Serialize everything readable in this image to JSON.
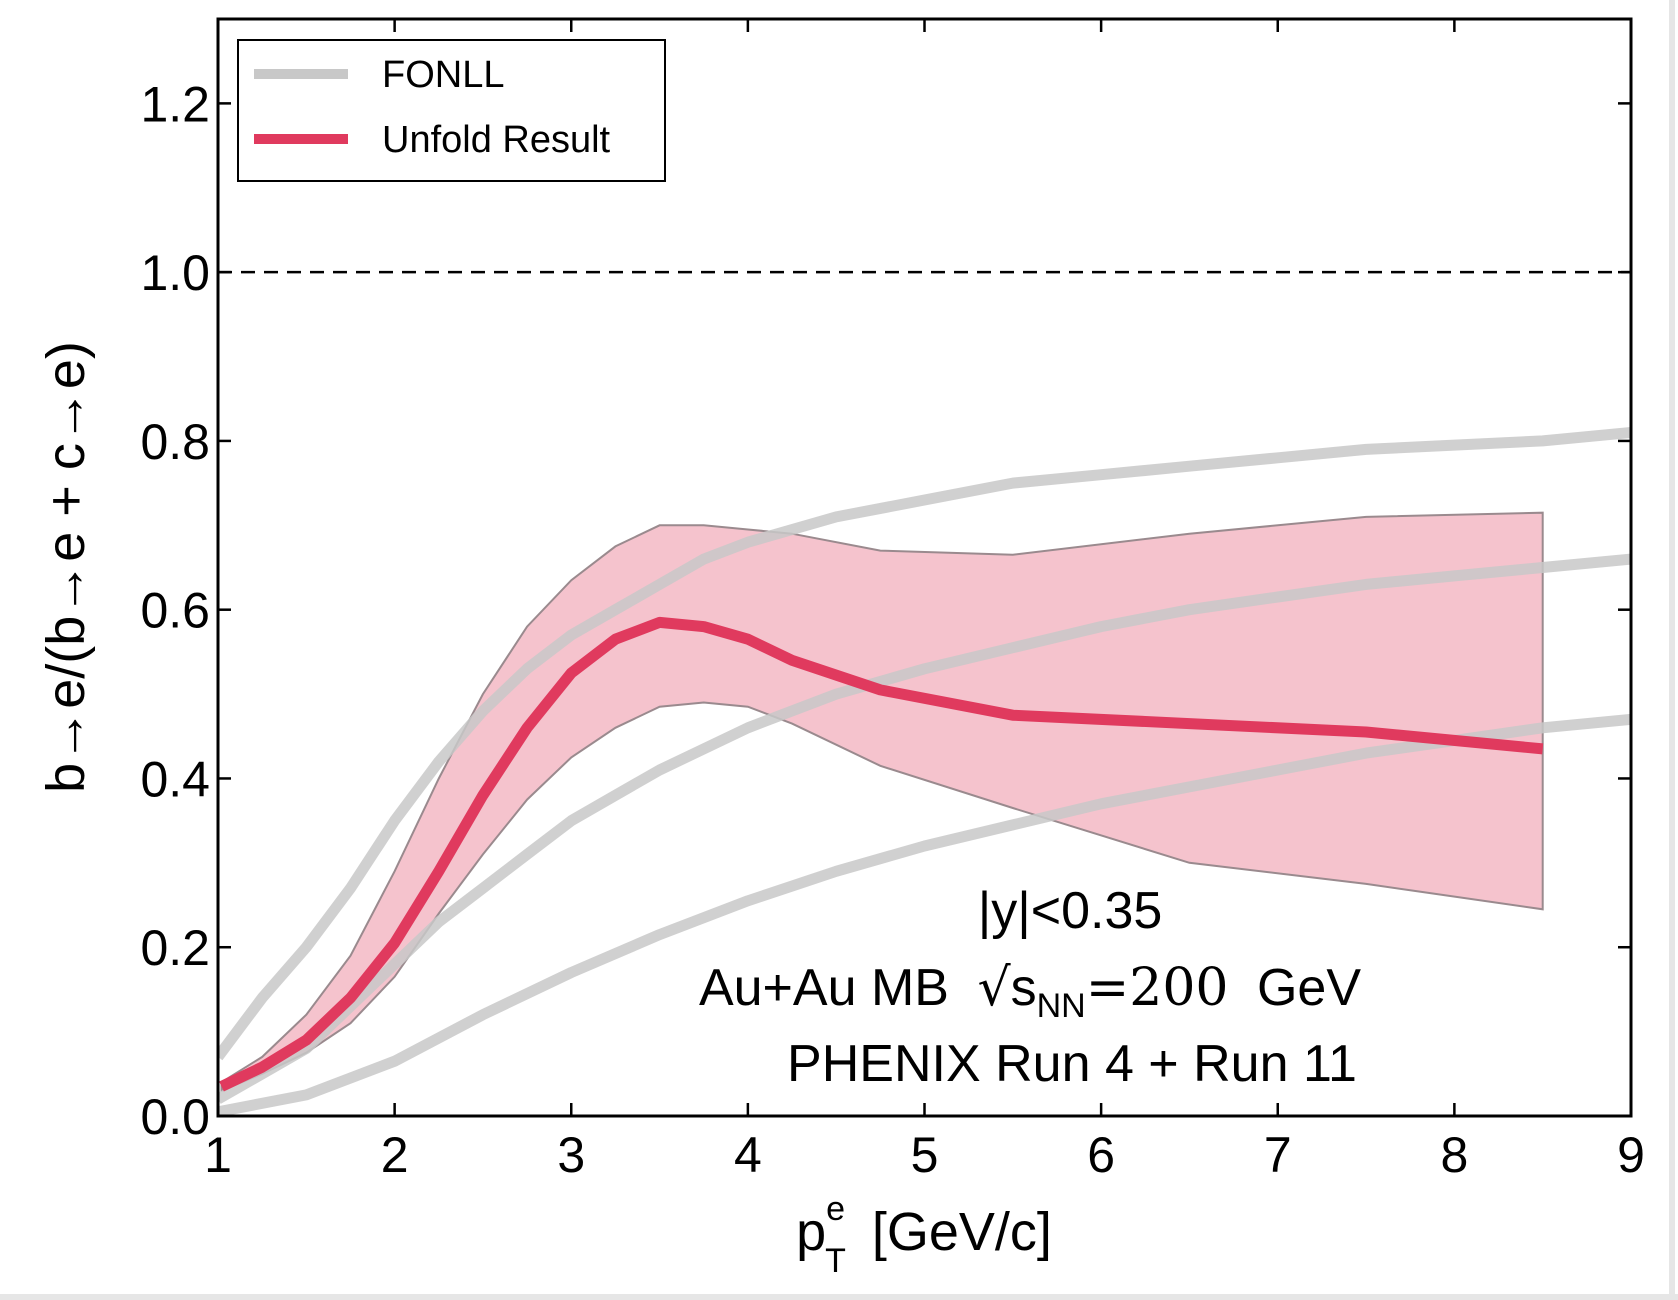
{
  "chart_data": {
    "type": "line",
    "xlabel": {
      "main": "p",
      "sup": "e",
      "sub": "T",
      "unit": "[GeV/c]"
    },
    "ylabel": "b→e/(b→e + c→e)",
    "xlim": [
      1,
      9
    ],
    "ylim": [
      0,
      1.3
    ],
    "xticks": [
      1,
      2,
      3,
      4,
      5,
      6,
      7,
      8,
      9
    ],
    "xtick_labels": [
      "1",
      "2",
      "3",
      "4",
      "5",
      "6",
      "7",
      "8",
      "9"
    ],
    "yticks": [
      0,
      0.2,
      0.4,
      0.6,
      0.8,
      1.0,
      1.2
    ],
    "ytick_labels": [
      "0.0",
      "0.2",
      "0.4",
      "0.6",
      "0.8",
      "1.0",
      "1.2"
    ],
    "reference_line": {
      "y": 1.0,
      "style": "dashed",
      "color": "#000000"
    },
    "legend": {
      "position": "top-left",
      "entries": [
        {
          "label": "FONLL",
          "color": "#c8c8c8"
        },
        {
          "label": "Unfold Result",
          "color": "#e03a5e"
        }
      ]
    },
    "annotations": {
      "line1": "|y|<0.35",
      "line2_prefix": "Au+Au MB",
      "line2_sqrt": "s",
      "line2_sub": "NN",
      "line2_eq": "=200",
      "line2_unit": "GeV",
      "line3": "PHENIX Run 4 + Run 11"
    },
    "series": [
      {
        "style": "fonll",
        "color": "#c8c8c8",
        "x": [
          1.0,
          1.25,
          1.5,
          1.75,
          2.0,
          2.25,
          2.5,
          2.75,
          3.0,
          3.25,
          3.5,
          3.75,
          4.0,
          4.5,
          5.0,
          5.5,
          6.0,
          6.5,
          7.0,
          7.5,
          8.0,
          8.5,
          9.0
        ],
        "y": [
          0.07,
          0.14,
          0.2,
          0.27,
          0.35,
          0.42,
          0.48,
          0.53,
          0.57,
          0.6,
          0.63,
          0.66,
          0.68,
          0.71,
          0.73,
          0.75,
          0.76,
          0.77,
          0.78,
          0.79,
          0.795,
          0.8,
          0.81
        ]
      },
      {
        "style": "fonll",
        "color": "#c8c8c8",
        "x": [
          1.0,
          1.25,
          1.5,
          1.75,
          2.0,
          2.25,
          2.5,
          2.75,
          3.0,
          3.25,
          3.5,
          3.75,
          4.0,
          4.5,
          5.0,
          5.5,
          6.0,
          6.5,
          7.0,
          7.5,
          8.0,
          8.5,
          9.0
        ],
        "y": [
          0.02,
          0.05,
          0.08,
          0.13,
          0.18,
          0.23,
          0.27,
          0.31,
          0.35,
          0.38,
          0.41,
          0.435,
          0.46,
          0.5,
          0.53,
          0.555,
          0.58,
          0.6,
          0.615,
          0.63,
          0.64,
          0.65,
          0.66
        ]
      },
      {
        "style": "fonll",
        "color": "#c8c8c8",
        "x": [
          1.0,
          1.5,
          2.0,
          2.5,
          3.0,
          3.5,
          4.0,
          4.5,
          5.0,
          5.5,
          6.0,
          6.5,
          7.0,
          7.5,
          8.0,
          8.5,
          9.0
        ],
        "y": [
          0.005,
          0.025,
          0.065,
          0.12,
          0.17,
          0.215,
          0.255,
          0.29,
          0.32,
          0.345,
          0.37,
          0.39,
          0.41,
          0.43,
          0.445,
          0.46,
          0.47
        ]
      },
      {
        "name": "Unfold Result",
        "style": "result",
        "color": "#e03a5e",
        "band_color": "#f4bcc8",
        "x": [
          1.02,
          1.25,
          1.5,
          1.75,
          2.0,
          2.25,
          2.5,
          2.75,
          3.0,
          3.25,
          3.5,
          3.75,
          4.0,
          4.25,
          4.75,
          5.5,
          6.5,
          7.5,
          8.5
        ],
        "y": [
          0.035,
          0.058,
          0.09,
          0.14,
          0.205,
          0.29,
          0.38,
          0.46,
          0.525,
          0.565,
          0.585,
          0.58,
          0.565,
          0.54,
          0.505,
          0.475,
          0.465,
          0.455,
          0.435
        ],
        "upper": [
          0.04,
          0.07,
          0.12,
          0.19,
          0.29,
          0.4,
          0.5,
          0.58,
          0.635,
          0.675,
          0.7,
          0.7,
          0.695,
          0.69,
          0.67,
          0.665,
          0.69,
          0.71,
          0.715
        ],
        "lower": [
          0.03,
          0.05,
          0.075,
          0.11,
          0.165,
          0.24,
          0.31,
          0.375,
          0.425,
          0.46,
          0.485,
          0.49,
          0.485,
          0.465,
          0.415,
          0.365,
          0.3,
          0.275,
          0.245
        ]
      }
    ]
  }
}
